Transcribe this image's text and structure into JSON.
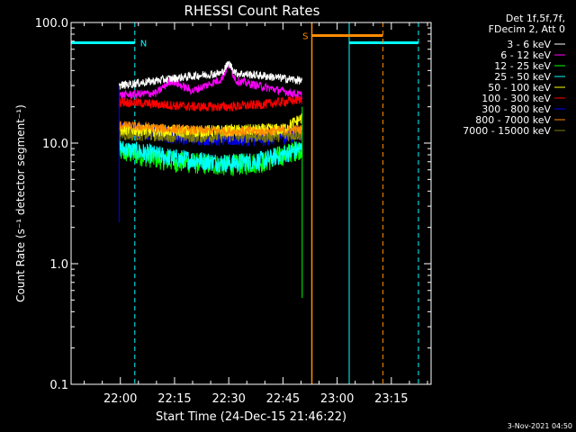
{
  "chart_data": {
    "type": "line",
    "title": "RHESSI Count Rates",
    "xlabel": "Start Time (24-Dec-15 21:46:22)",
    "ylabel": "Count Rate (s⁻¹ detector segment⁻¹)",
    "y_scale": "log",
    "ylim": [
      0.1,
      100.0
    ],
    "yticks": [
      "0.1",
      "1.0",
      "10.0",
      "100.0"
    ],
    "xlim": [
      "21:46:22",
      "23:26:00"
    ],
    "xticks": [
      "22:00",
      "22:15",
      "22:30",
      "22:45",
      "23:00",
      "23:15"
    ],
    "timestamp": "3-Nov-2021 04:50",
    "legend_header": [
      "Det 1f,5f,7f,",
      "FDecim 2, Att 0"
    ],
    "legend_position": "top-right",
    "data_interval": [
      "21:59:40",
      "22:50:20"
    ],
    "series": [
      {
        "name": "3 - 6 keV",
        "color": "#ffffff",
        "x": [
          "22:00",
          "22:10",
          "22:20",
          "22:28",
          "22:30",
          "22:32",
          "22:40",
          "22:50"
        ],
        "y": [
          30,
          33,
          36,
          38,
          46,
          38,
          36,
          33
        ]
      },
      {
        "name": "6 - 12 keV",
        "color": "#ff00ff",
        "x": [
          "22:00",
          "22:10",
          "22:14",
          "22:20",
          "22:28",
          "22:30",
          "22:32",
          "22:38",
          "22:50"
        ],
        "y": [
          25,
          26,
          33,
          27,
          34,
          45,
          33,
          30,
          25
        ]
      },
      {
        "name": "12 - 25 keV",
        "color": "#00ff00",
        "x": [
          "22:00",
          "22:15",
          "22:30",
          "22:40",
          "22:50"
        ],
        "y": [
          8.5,
          7,
          6.5,
          7,
          9
        ]
      },
      {
        "name": "25 - 50 keV",
        "color": "#00ffff",
        "x": [
          "22:00",
          "22:15",
          "22:30",
          "22:40",
          "22:50"
        ],
        "y": [
          9,
          7.5,
          6.8,
          7.2,
          9
        ]
      },
      {
        "name": "50 - 100 keV",
        "color": "#ffff00",
        "x": [
          "22:00",
          "22:20",
          "22:45",
          "22:50"
        ],
        "y": [
          13,
          12.5,
          13,
          16
        ]
      },
      {
        "name": "100 - 300 keV",
        "color": "#ff0000",
        "x": [
          "22:00",
          "22:10",
          "22:20",
          "22:30",
          "22:40",
          "22:50"
        ],
        "y": [
          22,
          21,
          20,
          20,
          21,
          23
        ]
      },
      {
        "name": "300 - 800 keV",
        "color": "#0000ff",
        "x": [
          "22:00",
          "22:15",
          "22:30",
          "22:40",
          "22:50"
        ],
        "y": [
          13,
          11.5,
          11,
          11,
          12
        ]
      },
      {
        "name": "800 - 7000 keV",
        "color": "#ff8c00",
        "x": [
          "22:00",
          "22:15",
          "22:30",
          "22:40",
          "22:50"
        ],
        "y": [
          14,
          13,
          12.5,
          12.5,
          13
        ]
      },
      {
        "name": "7000 - 15000 keV",
        "color": "#808000",
        "x": [
          "22:00",
          "22:20",
          "22:40",
          "22:50"
        ],
        "y": [
          12,
          11.5,
          11.5,
          12
        ]
      }
    ],
    "night_segments": [
      {
        "label": "N",
        "color": "#00ffff",
        "start": "21:46:22",
        "end": "22:04:00",
        "y": 68
      },
      {
        "label": "",
        "color": "#00ffff",
        "start": "23:03:20",
        "end": "23:22:30",
        "y": 68
      }
    ],
    "saa_segments": [
      {
        "label": "S",
        "color": "#ff8c00",
        "start": "22:53:00",
        "end": "23:12:40",
        "y": 78
      }
    ]
  }
}
